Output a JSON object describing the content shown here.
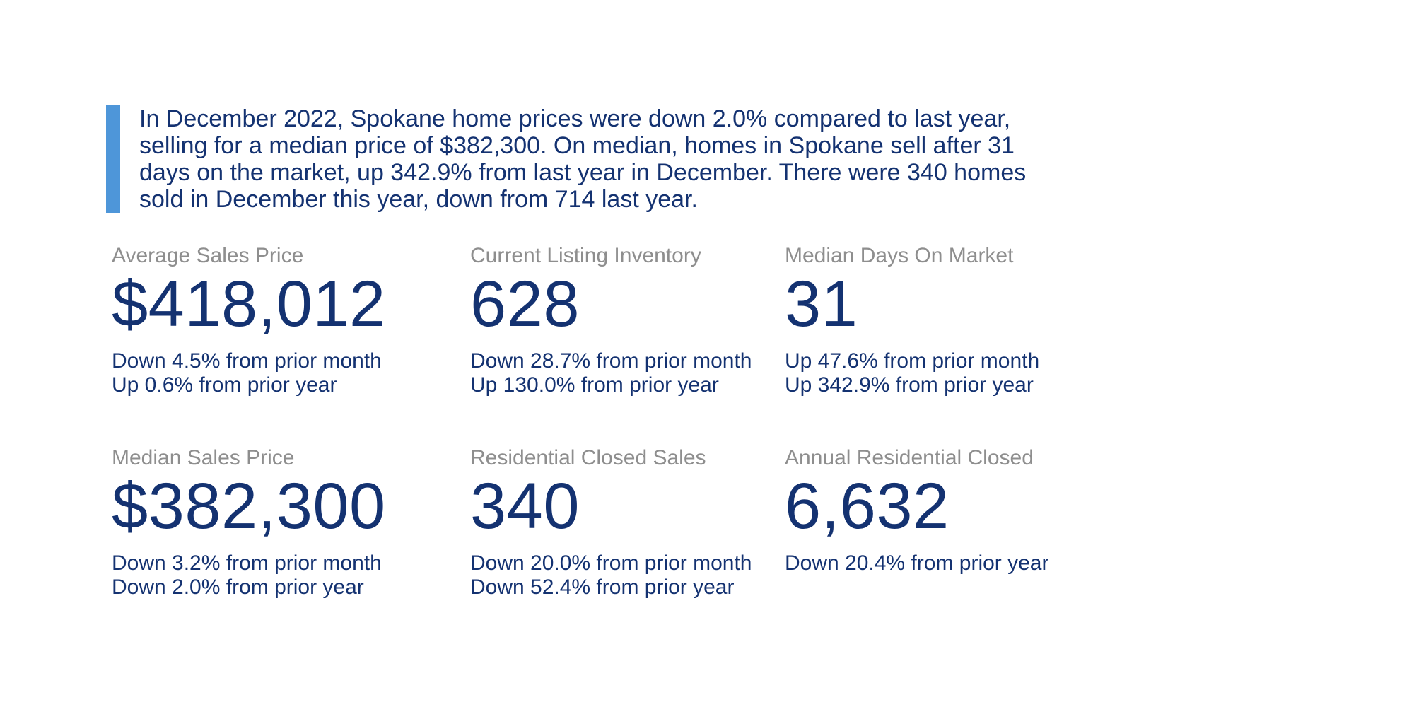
{
  "colors": {
    "accent_bar": "#4e96d9",
    "navy": "#143271",
    "label_gray": "#8e8e8e",
    "page_bg": "#ffffff"
  },
  "summary": {
    "text": "In December 2022, Spokane home prices were down 2.0% compared to last year, selling for a median price of $382,300. On median, homes in Spokane sell after 31 days on the market, up 342.9% from last year in December. There were 340 homes sold in December this year, down from 714 last year."
  },
  "stats": [
    {
      "label": "Average Sales Price",
      "value": "$418,012",
      "changes": [
        "Down 4.5% from prior month",
        "Up 0.6% from prior year"
      ]
    },
    {
      "label": "Current Listing Inventory",
      "value": "628",
      "changes": [
        "Down 28.7% from prior month",
        "Up 130.0% from prior year"
      ]
    },
    {
      "label": "Median Days On Market",
      "value": "31",
      "changes": [
        "Up 47.6% from prior month",
        "Up 342.9% from prior year"
      ]
    },
    {
      "label": "Median Sales Price",
      "value": "$382,300",
      "changes": [
        "Down 3.2% from prior month",
        "Down 2.0% from prior year"
      ]
    },
    {
      "label": "Residential Closed Sales",
      "value": "340",
      "changes": [
        "Down 20.0% from prior month",
        "Down 52.4% from prior year"
      ]
    },
    {
      "label": "Annual Residential Closed",
      "value": "6,632",
      "changes": [
        "Down 20.4% from prior year"
      ]
    }
  ]
}
